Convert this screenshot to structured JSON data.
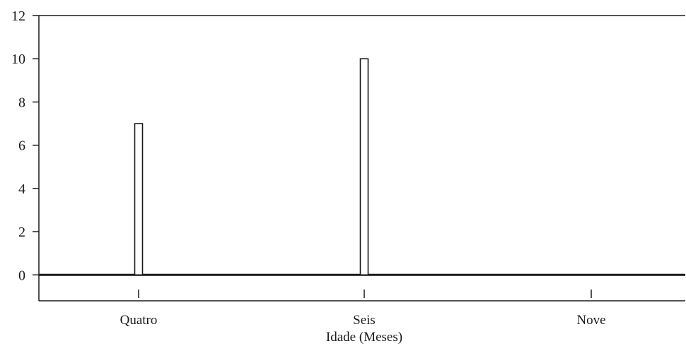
{
  "chart_data": {
    "type": "bar",
    "categories": [
      "Quatro",
      "Seis",
      "Nove"
    ],
    "values": [
      7,
      10,
      0
    ],
    "xlabel": "Idade (Meses)",
    "ylabel": "",
    "ylim": [
      -1.2,
      12
    ],
    "yticks": [
      0,
      2,
      4,
      6,
      8,
      10,
      12
    ],
    "grid": false,
    "colors": {
      "bar_fill": "#ffffff",
      "bar_stroke": "#1a1a1a",
      "axis": "#1a1a1a"
    }
  }
}
